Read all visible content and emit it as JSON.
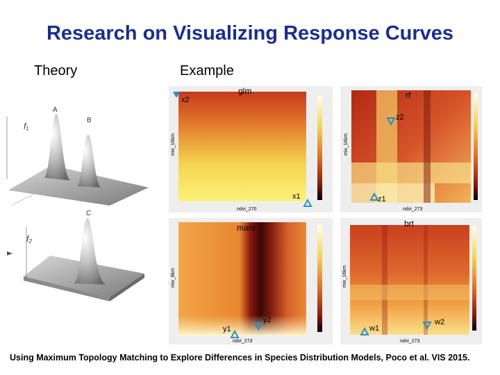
{
  "slide": {
    "title": "Research on Visualizing Response Curves",
    "theory_label": "Theory",
    "example_label": "Example",
    "caption": "Using Maximum Topology Matching to Explore Differences in Species Distribution Models, Poco et al. VIS 2015."
  },
  "theory": {
    "peak_labels": {
      "a": "A",
      "b": "B",
      "c": "C"
    },
    "axis_labels": {
      "f1": "f₁",
      "f2": "f₂"
    }
  },
  "panels": {
    "glm": {
      "name": "glm",
      "xlabel": "ndvi_270",
      "ylabel": "mix_16km",
      "markers": [
        "x2",
        "x1"
      ]
    },
    "rf": {
      "name": "rf",
      "xlabel": "ndvi_273",
      "ylabel": "mix_16km",
      "markers": [
        "z2",
        "z1"
      ]
    },
    "mars": {
      "name": "mars",
      "xlabel": "ndvi_273",
      "ylabel": "mix_8km",
      "markers": [
        "y1",
        "y2"
      ]
    },
    "brt": {
      "name": "brt",
      "xlabel": "ndvi_273",
      "ylabel": "mix_16km",
      "markers": [
        "w1",
        "w2"
      ]
    }
  },
  "colors": {
    "title": "#1a2e8c",
    "marker": "#2a8fc0"
  }
}
